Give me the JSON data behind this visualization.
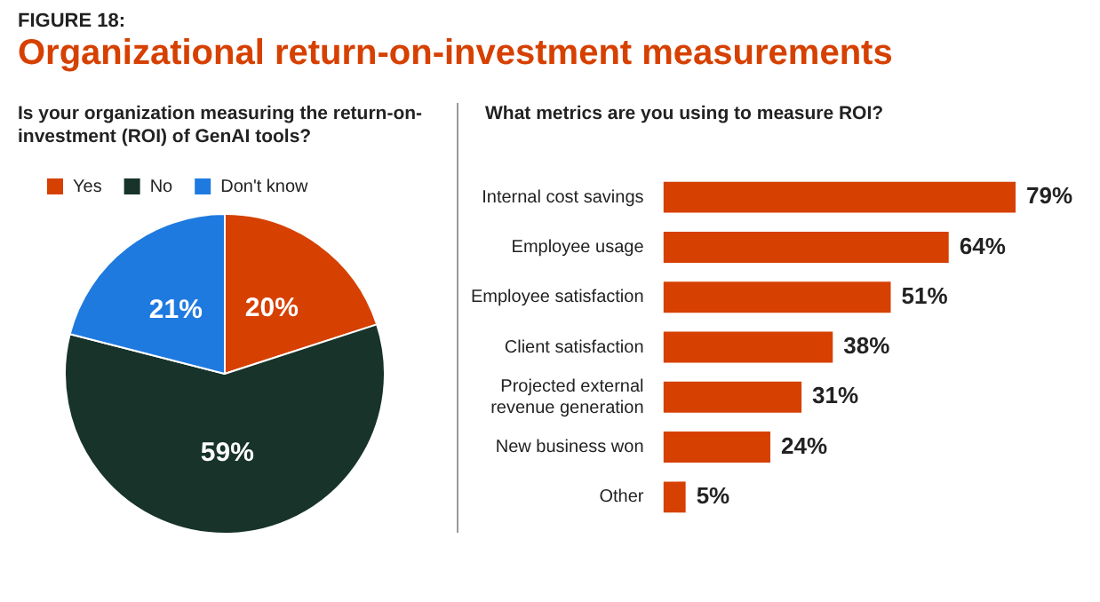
{
  "chart_data": [
    {
      "type": "pie",
      "title": "Is your organization measuring the return-on-investment (ROI) of GenAI tools?",
      "annotations": [
        "FIGURE 18:",
        "Organizational return-on-investment measurements"
      ],
      "legend": "top left",
      "categories": [
        "Yes",
        "No",
        "Don't know"
      ],
      "values": [
        20,
        59,
        21
      ],
      "colors": [
        "#d64000",
        "#17332a",
        "#1f7ae0"
      ],
      "value_labels": [
        "20%",
        "59%",
        "21%"
      ]
    },
    {
      "type": "bar",
      "orientation": "horizontal",
      "title": "What metrics are you using to measure ROI?",
      "categories": [
        "Internal cost savings",
        "Employee usage",
        "Employee satisfaction",
        "Client satisfaction",
        "Projected external revenue generation",
        "New business won",
        "Other"
      ],
      "values": [
        79,
        64,
        51,
        38,
        31,
        24,
        5
      ],
      "color": "#d64000",
      "value_labels": [
        "79%",
        "64%",
        "51%",
        "38%",
        "31%",
        "24%",
        "5%"
      ]
    }
  ]
}
